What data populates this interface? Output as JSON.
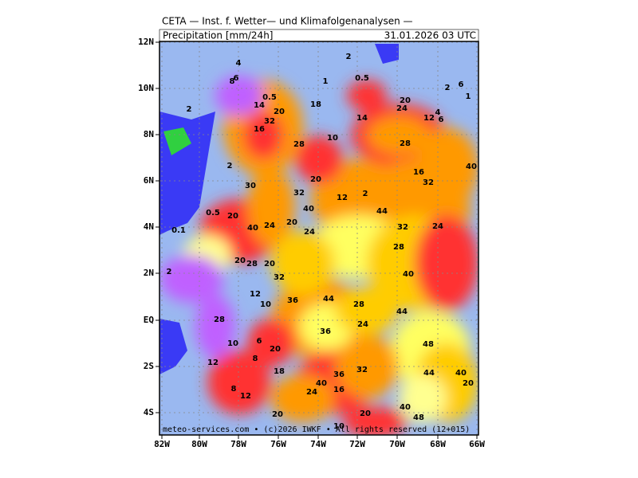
{
  "header": {
    "title": "CETA — Inst. f. Wetter— und Klimafolgenanalysen —",
    "variable": "Precipitation [mm/24h]",
    "valid_time": "31.01.2026 03 UTC"
  },
  "footer": "meteo-services.com • (c)2026 IWKF • All rights reserved (12+015)",
  "lat_labels": [
    "12N",
    "10N",
    "8N",
    "6N",
    "4N",
    "2N",
    "EQ",
    "2S",
    "4S"
  ],
  "lon_labels": [
    "82W",
    "80W",
    "78W",
    "76W",
    "74W",
    "72W",
    "70W",
    "68W",
    "66W"
  ],
  "contour_labels": [
    "4",
    "2",
    "6",
    "8",
    "0.5",
    "1",
    "0.5",
    "2",
    "2",
    "6",
    "1",
    "20",
    "24",
    "14",
    "20",
    "18",
    "32",
    "14",
    "12",
    "6",
    "4",
    "16",
    "28",
    "10",
    "28",
    "2",
    "20",
    "16",
    "40",
    "32",
    "30",
    "32",
    "12",
    "2",
    "0.5",
    "40",
    "44",
    "20",
    "0.1",
    "40",
    "24",
    "20",
    "24",
    "32",
    "24",
    "28",
    "20",
    "28",
    "20",
    "2",
    "32",
    "40",
    "12",
    "10",
    "36",
    "44",
    "28",
    "44",
    "28",
    "36",
    "24",
    "10",
    "6",
    "20",
    "48",
    "12",
    "8",
    "18",
    "36",
    "32",
    "44",
    "40",
    "8",
    "12",
    "24",
    "40",
    "16",
    "40",
    "20",
    "20",
    "20",
    "48",
    "10"
  ]
}
